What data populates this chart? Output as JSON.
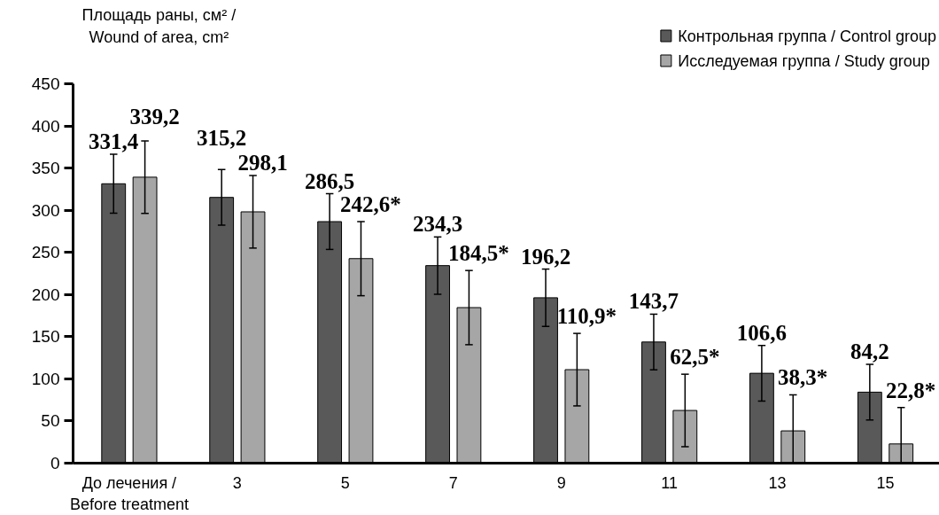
{
  "chart_data": {
    "type": "bar",
    "ylabel": "Площадь раны, см² / Wound of area, cm²",
    "categories": [
      "До лечения / Before treatment",
      "3",
      "5",
      "7",
      "9",
      "11",
      "13",
      "15"
    ],
    "series": [
      {
        "name": "Контрольная группа / Control group",
        "color": "#595959",
        "values": [
          331.4,
          315.2,
          286.5,
          234.3,
          196.2,
          143.7,
          106.6,
          84.2
        ],
        "errors": [
          35,
          33,
          33,
          34,
          34,
          33,
          33,
          33
        ],
        "value_labels": [
          "331,4",
          "315,2",
          "286,5",
          "234,3",
          "196,2",
          "143,7",
          "106,6",
          "84,2"
        ]
      },
      {
        "name": "Исследуемая группа / Study group",
        "color": "#a6a6a6",
        "values": [
          339.2,
          298.1,
          242.6,
          184.5,
          110.9,
          62.5,
          38.3,
          22.8
        ],
        "errors": [
          43,
          43,
          44,
          44,
          43,
          43,
          [
            0,
            81
          ],
          [
            0,
            66
          ]
        ],
        "value_labels": [
          "339,2",
          "298,1",
          "242,6*",
          "184,5*",
          "110,9*",
          "62,5*",
          "38,3*",
          "22,8*"
        ]
      }
    ],
    "ylim": [
      0,
      450
    ],
    "yticks": [
      0,
      50,
      100,
      150,
      200,
      250,
      300,
      350,
      400,
      450
    ],
    "legend": "top right"
  }
}
